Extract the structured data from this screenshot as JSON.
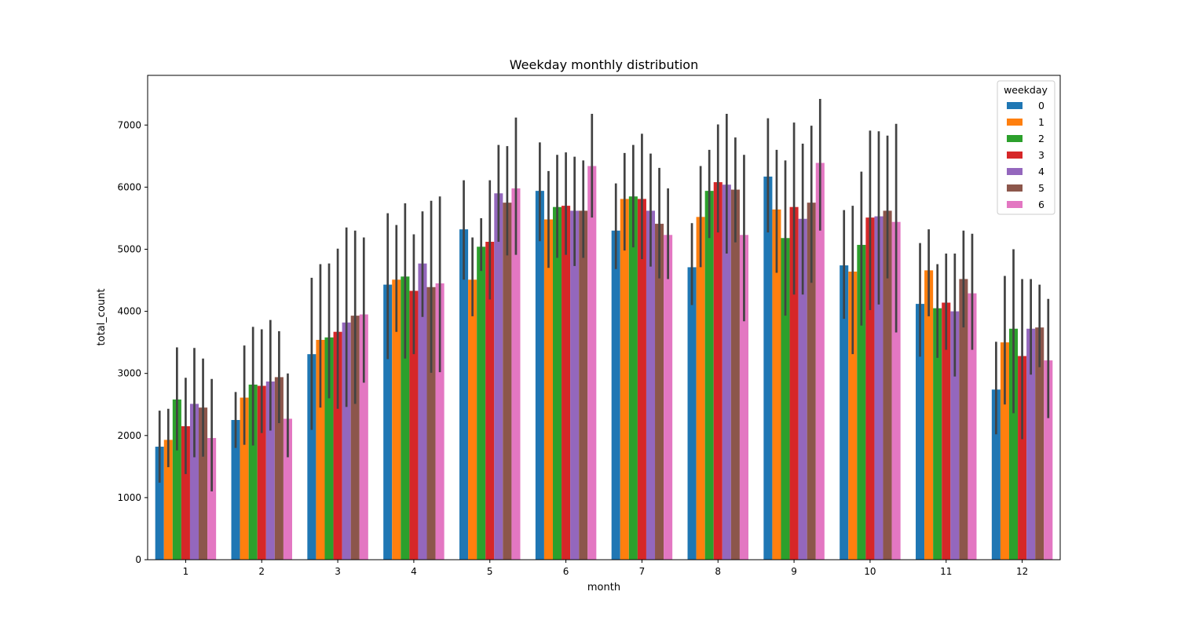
{
  "chart_data": {
    "type": "bar",
    "title": "Weekday monthly distribution",
    "xlabel": "month",
    "ylabel": "total_count",
    "categories": [
      "1",
      "2",
      "3",
      "4",
      "5",
      "6",
      "7",
      "8",
      "9",
      "10",
      "11",
      "12"
    ],
    "ylim": [
      0,
      7800
    ],
    "yticks": [
      0,
      1000,
      2000,
      3000,
      4000,
      5000,
      6000,
      7000
    ],
    "legend": {
      "title": "weekday",
      "placement": "top-right"
    },
    "grid": false,
    "error_bars": true,
    "series": [
      {
        "name": "0",
        "color": "#1f77b4",
        "values": [
          1820,
          2250,
          3310,
          4430,
          5320,
          5940,
          5300,
          4710,
          6170,
          4740,
          4120,
          2740
        ],
        "err_low": [
          1240,
          1800,
          2090,
          3230,
          4510,
          5130,
          4680,
          4100,
          5270,
          3880,
          3270,
          2020
        ],
        "err_high": [
          2400,
          2700,
          4540,
          5580,
          6110,
          6720,
          6060,
          5420,
          7110,
          5630,
          5100,
          3510
        ]
      },
      {
        "name": "1",
        "color": "#ff7f0e",
        "values": [
          1930,
          2610,
          3540,
          4510,
          4510,
          5480,
          5810,
          5520,
          5640,
          4640,
          4660,
          3500
        ],
        "err_low": [
          1490,
          1850,
          2450,
          3670,
          3920,
          4700,
          4980,
          4710,
          4620,
          3310,
          3920,
          2500
        ],
        "err_high": [
          2430,
          3450,
          4760,
          5390,
          5190,
          6260,
          6550,
          6340,
          6600,
          5700,
          5320,
          4570
        ]
      },
      {
        "name": "2",
        "color": "#2ca02c",
        "values": [
          2580,
          2820,
          3580,
          4560,
          5040,
          5680,
          5850,
          5940,
          5180,
          5070,
          4050,
          3720
        ],
        "err_low": [
          1760,
          1840,
          2600,
          3240,
          4650,
          4860,
          5030,
          5180,
          3930,
          3770,
          3250,
          2360
        ],
        "err_high": [
          3420,
          3750,
          4770,
          5740,
          5500,
          6520,
          6680,
          6600,
          6430,
          6250,
          4760,
          5000
        ]
      },
      {
        "name": "3",
        "color": "#d62728",
        "values": [
          2150,
          2800,
          3670,
          4330,
          5120,
          5700,
          5810,
          6080,
          5680,
          5510,
          4140,
          3280
        ],
        "err_low": [
          1380,
          2040,
          2430,
          3310,
          4190,
          4910,
          4840,
          5270,
          4270,
          4020,
          3380,
          1940
        ],
        "err_high": [
          2930,
          3710,
          5010,
          5240,
          6110,
          6560,
          6860,
          7010,
          7040,
          6910,
          4930,
          4520
        ]
      },
      {
        "name": "4",
        "color": "#9467bd",
        "values": [
          2510,
          2870,
          3820,
          4770,
          5900,
          5620,
          5620,
          6040,
          5490,
          5530,
          4000,
          3720
        ],
        "err_low": [
          1650,
          2080,
          2460,
          3910,
          5120,
          4730,
          4720,
          4930,
          4270,
          4110,
          2950,
          2980
        ],
        "err_high": [
          3410,
          3860,
          5350,
          5610,
          6680,
          6490,
          6540,
          7180,
          6700,
          6900,
          4930,
          4520
        ]
      },
      {
        "name": "5",
        "color": "#8c564b",
        "values": [
          2450,
          2940,
          3930,
          4390,
          5750,
          5620,
          5410,
          5960,
          5750,
          5620,
          4520,
          3740
        ],
        "err_low": [
          1660,
          2200,
          2510,
          3010,
          4900,
          4860,
          4530,
          5110,
          4460,
          4530,
          3740,
          3100
        ],
        "err_high": [
          3240,
          3680,
          5300,
          5780,
          6660,
          6430,
          6310,
          6800,
          6990,
          6830,
          5300,
          4430
        ]
      },
      {
        "name": "6",
        "color": "#e377c2",
        "values": [
          1960,
          2270,
          3950,
          4450,
          5980,
          6340,
          5230,
          5230,
          6390,
          5440,
          4290,
          3210
        ],
        "err_low": [
          1100,
          1650,
          2850,
          3020,
          4910,
          5510,
          4520,
          3840,
          5300,
          3660,
          3380,
          2280
        ],
        "err_high": [
          2910,
          3000,
          5190,
          5850,
          7120,
          7180,
          5980,
          6520,
          7420,
          7020,
          5250,
          4200
        ]
      }
    ]
  }
}
